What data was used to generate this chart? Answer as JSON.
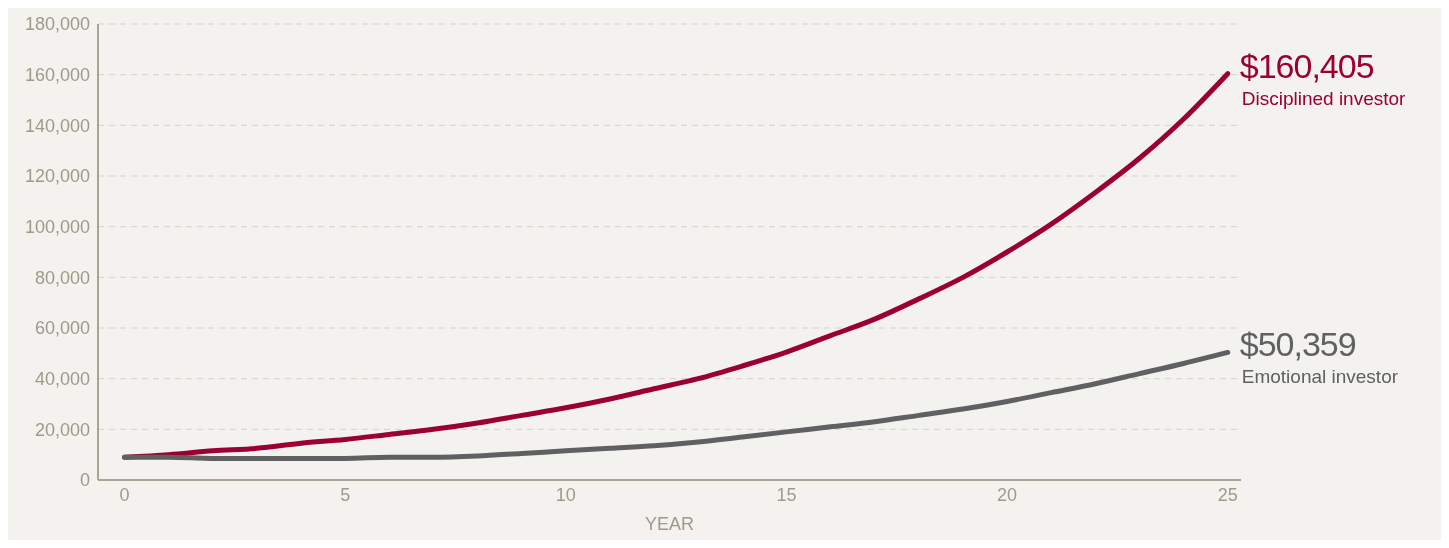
{
  "chart_data": {
    "type": "line",
    "xlabel": "YEAR",
    "x": [
      0,
      1,
      2,
      3,
      4,
      5,
      6,
      7,
      8,
      9,
      10,
      11,
      12,
      13,
      14,
      15,
      16,
      17,
      18,
      19,
      20,
      21,
      22,
      23,
      24,
      25
    ],
    "series": [
      {
        "name": "Disciplined investor",
        "color": "#9b0033",
        "values": [
          9000,
          10000,
          11500,
          12500,
          14500,
          16000,
          18000,
          20000,
          22500,
          25500,
          28500,
          32000,
          36000,
          40000,
          45000,
          50500,
          57000,
          63500,
          71500,
          80000,
          90000,
          101000,
          113500,
          127000,
          142500,
          160405
        ],
        "value_labels": [
          null,
          null,
          null,
          null,
          null,
          null,
          null,
          null,
          null,
          null,
          null,
          null,
          null,
          null,
          null,
          null,
          null,
          null,
          null,
          null,
          null,
          null,
          null,
          null,
          null,
          "$160,405"
        ]
      },
      {
        "name": "Emotional investor",
        "color": "#5f6062",
        "values": [
          9000,
          9000,
          8500,
          8500,
          8500,
          8500,
          9000,
          9000,
          9500,
          10500,
          11500,
          12500,
          13500,
          15000,
          17000,
          19000,
          21000,
          23000,
          25500,
          28000,
          31000,
          34500,
          38000,
          42000,
          46000,
          50359
        ],
        "value_labels": [
          null,
          null,
          null,
          null,
          null,
          null,
          null,
          null,
          null,
          null,
          null,
          null,
          null,
          null,
          null,
          null,
          null,
          null,
          null,
          null,
          null,
          null,
          null,
          null,
          null,
          "$50,359"
        ]
      }
    ],
    "xlim": [
      -0.6,
      25.3
    ],
    "xticks": [
      0,
      5,
      10,
      15,
      20,
      25
    ],
    "ylim": [
      0,
      180000
    ],
    "yticks": [
      0,
      {
        "value": 20000,
        "label": "20,000"
      },
      {
        "value": 40000,
        "label": "40,000"
      },
      {
        "value": 60000,
        "label": "60,000"
      },
      {
        "value": 80000,
        "label": "80,000"
      },
      {
        "value": 100000,
        "label": "100,000"
      },
      {
        "value": 120000,
        "label": "120,000"
      },
      {
        "value": 140000,
        "label": "140,000"
      },
      {
        "value": 160000,
        "label": "160,000"
      },
      {
        "value": 180000,
        "label": "180,000"
      }
    ],
    "grid": "y",
    "legend": false,
    "marker": "none",
    "line_style": "solid"
  }
}
